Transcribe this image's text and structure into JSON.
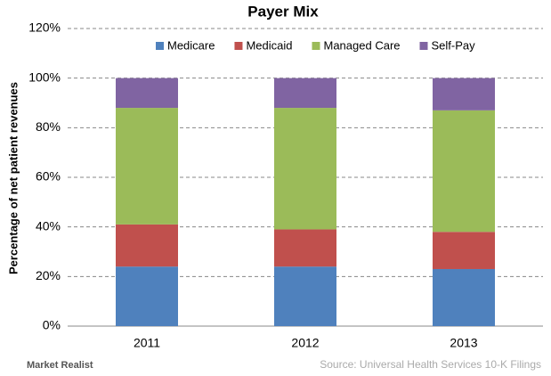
{
  "chart_data": {
    "type": "stacked_bar",
    "title": "Payer Mix",
    "y_label": "Percentage of net patient revenues",
    "categories": [
      "2011",
      "2012",
      "2013"
    ],
    "series": [
      {
        "name": "Medicare",
        "color": "#4f81bd",
        "values": [
          24,
          24,
          23
        ]
      },
      {
        "name": "Medicaid",
        "color": "#c0504d",
        "values": [
          17,
          15,
          15
        ]
      },
      {
        "name": "Managed Care",
        "color": "#9bbb59",
        "values": [
          47,
          49,
          49
        ]
      },
      {
        "name": "Self-Pay",
        "color": "#8064a2",
        "values": [
          12,
          12,
          13
        ]
      }
    ],
    "ylim": [
      0,
      120
    ],
    "yticks": [
      {
        "value": 0,
        "label": "0%"
      },
      {
        "value": 20,
        "label": "20%"
      },
      {
        "value": 40,
        "label": "40%"
      },
      {
        "value": 60,
        "label": "60%"
      },
      {
        "value": 80,
        "label": "80%"
      },
      {
        "value": 100,
        "label": "100%"
      },
      {
        "value": 120,
        "label": "120%"
      }
    ],
    "grid": true,
    "legend": "top",
    "logo": "Market Realist",
    "source": "Source: Universal Health Services 10-K Filings"
  }
}
